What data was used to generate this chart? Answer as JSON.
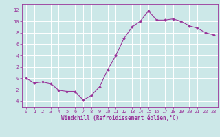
{
  "x": [
    0,
    1,
    2,
    3,
    4,
    5,
    6,
    7,
    8,
    9,
    10,
    11,
    12,
    13,
    14,
    15,
    16,
    17,
    18,
    19,
    20,
    21,
    22,
    23
  ],
  "y": [
    0,
    -0.8,
    -0.6,
    -0.9,
    -2.1,
    -2.3,
    -2.3,
    -3.8,
    -3.0,
    -1.5,
    1.5,
    4.0,
    7.0,
    9.0,
    10.0,
    11.8,
    10.2,
    10.2,
    10.4,
    10.0,
    9.2,
    8.8,
    8.0,
    7.6
  ],
  "line_color": "#993399",
  "marker": "D",
  "marker_size": 1.8,
  "background_color": "#cce8e8",
  "grid_color": "#ffffff",
  "xlabel": "Windchill (Refroidissement éolien,°C)",
  "ylabel_ticks": [
    -4,
    -2,
    0,
    2,
    4,
    6,
    8,
    10,
    12
  ],
  "xlim": [
    -0.5,
    23.5
  ],
  "ylim": [
    -5,
    13
  ],
  "xtick_labels": [
    "0",
    "1",
    "2",
    "3",
    "4",
    "5",
    "6",
    "7",
    "8",
    "9",
    "10",
    "11",
    "12",
    "13",
    "14",
    "15",
    "16",
    "17",
    "18",
    "19",
    "20",
    "21",
    "22",
    "23"
  ],
  "axis_color": "#993399",
  "tick_color": "#993399",
  "label_color": "#993399",
  "tick_fontsize": 5.0,
  "xlabel_fontsize": 5.5,
  "linewidth": 0.8
}
